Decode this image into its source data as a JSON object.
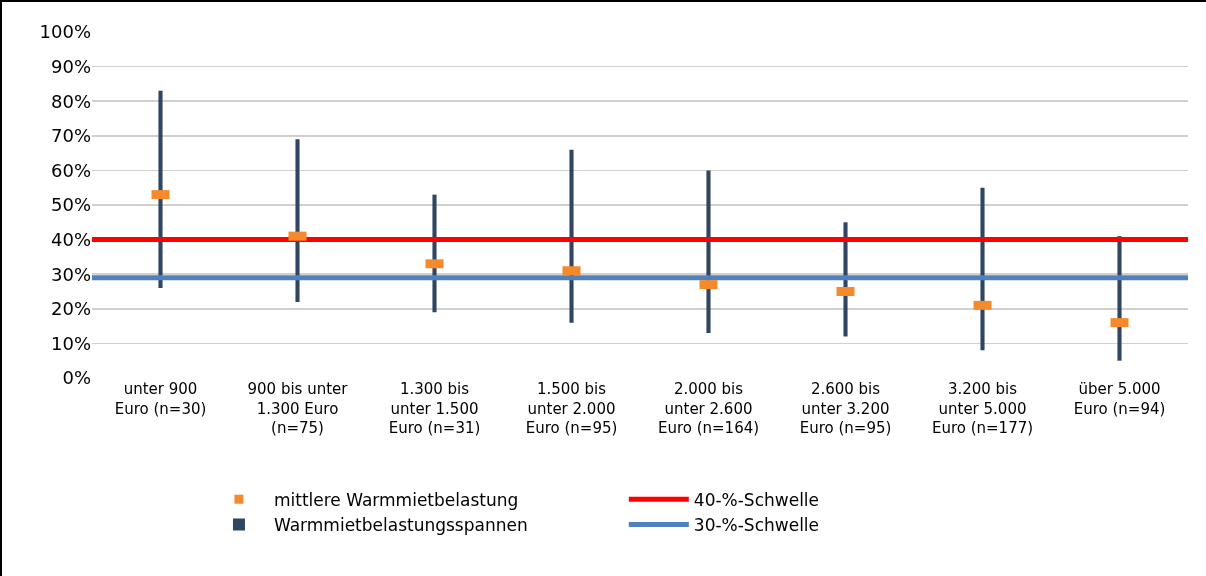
{
  "chart_data": {
    "type": "bar",
    "categories": [
      "unter 900 Euro (n=30)",
      "900 bis unter 1.300 Euro (n=75)",
      "1.300 bis unter 1.500 Euro (n=31)",
      "1.500 bis unter 2.000 Euro (n=95)",
      "2.000 bis unter 2.600 Euro (n=164)",
      "2.600 bis unter 3.200 Euro (n=95)",
      "3.200 bis unter 5.000 Euro (n=177)",
      "über 5.000 Euro (n=94)"
    ],
    "series": [
      {
        "name": "Warmmietbelastungsspannen",
        "color": "#2f4562",
        "base": [
          26,
          22,
          19,
          16,
          13,
          12,
          8,
          5
        ],
        "values": [
          57,
          47,
          34,
          50,
          47,
          33,
          47,
          36
        ]
      },
      {
        "name": "mittlere Warmmietbelastung",
        "type": "scatter",
        "marker": "square",
        "color": "#f58a2c",
        "values": [
          53,
          41,
          33,
          31,
          27,
          25,
          21,
          16
        ]
      }
    ],
    "ref_lines": [
      {
        "axis": "y",
        "value": 40,
        "label": "40-%-Schwelle",
        "color": "#ff0000"
      },
      {
        "axis": "y",
        "value": 29,
        "label": "30-%-Schwelle",
        "color": "#4f81bd"
      }
    ],
    "ylim": [
      0,
      100
    ],
    "yticks": [
      {
        "value": 0,
        "label": "0%"
      },
      {
        "value": 10,
        "label": "10%"
      },
      {
        "value": 20,
        "label": "20%"
      },
      {
        "value": 30,
        "label": "30%"
      },
      {
        "value": 40,
        "label": "40%"
      },
      {
        "value": 50,
        "label": "50%"
      },
      {
        "value": 60,
        "label": "60%"
      },
      {
        "value": 70,
        "label": "70%"
      },
      {
        "value": 80,
        "label": "80%"
      },
      {
        "value": 90,
        "label": "90%"
      },
      {
        "value": 100,
        "label": "100%"
      }
    ],
    "grid": "y",
    "legend": "bottom"
  }
}
